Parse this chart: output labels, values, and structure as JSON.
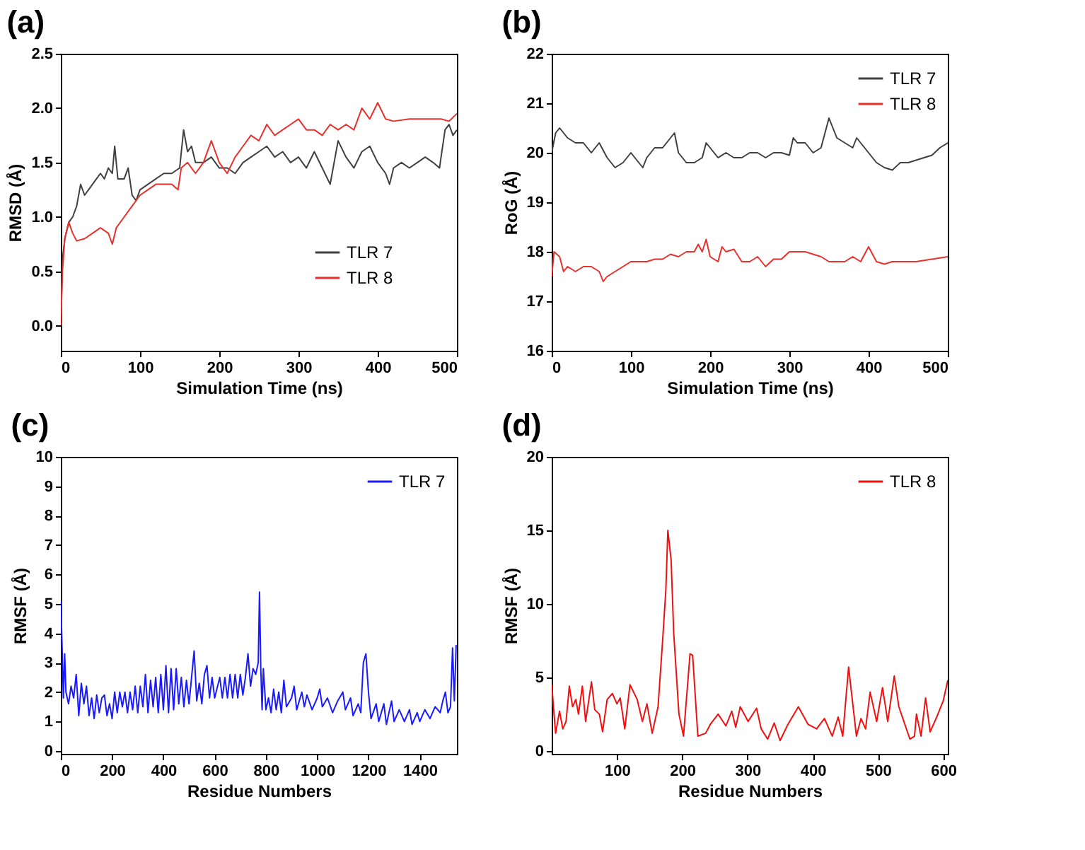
{
  "chart_data": [
    {
      "type": "line",
      "title": "(a)",
      "xlabel": "Simulation Time (ns)",
      "ylabel": "RMSD (Å)",
      "xlim": [
        0,
        500
      ],
      "ylim": [
        -0.23,
        2.5
      ],
      "xticks": [
        0,
        100,
        200,
        300,
        400,
        500
      ],
      "yticks": [
        {
          "value": 0,
          "label": "0.0"
        },
        {
          "value": 0.5,
          "label": "0.5"
        },
        {
          "value": 1,
          "label": "1.0"
        },
        {
          "value": 1.5,
          "label": "1.5"
        },
        {
          "value": 2,
          "label": "2.0"
        },
        {
          "value": 2.5,
          "label": "2.5"
        }
      ],
      "legend": "bottom right",
      "series": [
        {
          "name": "TLR 7",
          "color": "#404040",
          "x": [
            0,
            2,
            5,
            10,
            15,
            20,
            25,
            30,
            35,
            40,
            45,
            50,
            55,
            60,
            65,
            68,
            72,
            80,
            85,
            90,
            95,
            100,
            110,
            120,
            130,
            140,
            150,
            155,
            160,
            165,
            170,
            180,
            190,
            200,
            210,
            220,
            230,
            240,
            250,
            260,
            270,
            280,
            290,
            300,
            310,
            320,
            330,
            340,
            350,
            360,
            370,
            380,
            390,
            400,
            410,
            415,
            420,
            430,
            440,
            450,
            460,
            470,
            478,
            485,
            490,
            495,
            500
          ],
          "values": [
            0.0,
            0.6,
            0.8,
            0.95,
            1.0,
            1.1,
            1.3,
            1.2,
            1.25,
            1.3,
            1.35,
            1.4,
            1.35,
            1.45,
            1.4,
            1.65,
            1.35,
            1.35,
            1.45,
            1.2,
            1.15,
            1.25,
            1.3,
            1.35,
            1.4,
            1.4,
            1.45,
            1.8,
            1.6,
            1.65,
            1.5,
            1.5,
            1.55,
            1.45,
            1.45,
            1.4,
            1.5,
            1.55,
            1.6,
            1.65,
            1.55,
            1.6,
            1.5,
            1.55,
            1.45,
            1.6,
            1.45,
            1.3,
            1.7,
            1.55,
            1.45,
            1.6,
            1.65,
            1.5,
            1.4,
            1.3,
            1.45,
            1.5,
            1.45,
            1.5,
            1.55,
            1.5,
            1.45,
            1.8,
            1.85,
            1.75,
            1.8
          ]
        },
        {
          "name": "TLR 8",
          "color": "#e8302c",
          "x": [
            0,
            2,
            5,
            10,
            15,
            20,
            30,
            40,
            50,
            60,
            65,
            70,
            80,
            90,
            100,
            110,
            120,
            130,
            140,
            148,
            152,
            160,
            170,
            180,
            190,
            200,
            210,
            220,
            230,
            240,
            250,
            260,
            270,
            280,
            290,
            300,
            310,
            320,
            330,
            340,
            350,
            360,
            370,
            380,
            390,
            400,
            410,
            420,
            440,
            460,
            480,
            490,
            500
          ],
          "values": [
            0.0,
            0.5,
            0.8,
            0.95,
            0.85,
            0.78,
            0.8,
            0.85,
            0.9,
            0.85,
            0.75,
            0.9,
            1.0,
            1.1,
            1.2,
            1.25,
            1.3,
            1.3,
            1.3,
            1.25,
            1.45,
            1.5,
            1.4,
            1.5,
            1.7,
            1.5,
            1.4,
            1.55,
            1.65,
            1.75,
            1.7,
            1.85,
            1.75,
            1.8,
            1.85,
            1.9,
            1.8,
            1.8,
            1.75,
            1.85,
            1.8,
            1.85,
            1.8,
            2.0,
            1.9,
            2.05,
            1.9,
            1.88,
            1.9,
            1.9,
            1.9,
            1.88,
            1.95
          ]
        }
      ]
    },
    {
      "type": "line",
      "title": "(b)",
      "xlabel": "Simulation Time (ns)",
      "ylabel": "RoG (Å)",
      "xlim": [
        0,
        500
      ],
      "ylim": [
        16,
        22
      ],
      "xticks": [
        0,
        100,
        200,
        300,
        400,
        500
      ],
      "yticks": [
        16,
        17,
        18,
        19,
        20,
        21,
        22
      ],
      "legend": "top right",
      "series": [
        {
          "name": "TLR 7",
          "color": "#404040",
          "x": [
            0,
            5,
            10,
            20,
            30,
            40,
            50,
            60,
            70,
            80,
            90,
            100,
            110,
            115,
            120,
            130,
            140,
            150,
            155,
            160,
            170,
            180,
            190,
            195,
            200,
            210,
            220,
            230,
            240,
            250,
            260,
            270,
            280,
            290,
            300,
            305,
            310,
            320,
            330,
            340,
            345,
            350,
            360,
            370,
            380,
            385,
            390,
            400,
            410,
            420,
            430,
            440,
            450,
            460,
            470,
            480,
            490,
            500
          ],
          "values": [
            20.0,
            20.4,
            20.5,
            20.3,
            20.2,
            20.2,
            20.0,
            20.2,
            19.9,
            19.7,
            19.8,
            20.0,
            19.8,
            19.7,
            19.9,
            20.1,
            20.1,
            20.3,
            20.4,
            20.0,
            19.8,
            19.8,
            19.9,
            20.2,
            20.1,
            19.9,
            20.0,
            19.9,
            19.9,
            20.0,
            20.0,
            19.9,
            20.0,
            20.0,
            19.95,
            20.3,
            20.2,
            20.2,
            20.0,
            20.1,
            20.4,
            20.7,
            20.3,
            20.2,
            20.1,
            20.3,
            20.2,
            20.0,
            19.8,
            19.7,
            19.65,
            19.8,
            19.8,
            19.85,
            19.9,
            19.95,
            20.1,
            20.2
          ]
        },
        {
          "name": "TLR 8",
          "color": "#e8302c",
          "x": [
            0,
            3,
            10,
            15,
            20,
            30,
            40,
            50,
            60,
            65,
            70,
            80,
            90,
            100,
            110,
            120,
            130,
            140,
            150,
            160,
            170,
            180,
            185,
            190,
            195,
            200,
            210,
            215,
            220,
            230,
            240,
            250,
            260,
            270,
            280,
            290,
            300,
            310,
            320,
            330,
            340,
            350,
            360,
            370,
            380,
            390,
            400,
            410,
            420,
            430,
            440,
            460,
            480,
            500
          ],
          "values": [
            17.5,
            18.0,
            17.9,
            17.6,
            17.7,
            17.6,
            17.7,
            17.7,
            17.6,
            17.4,
            17.5,
            17.6,
            17.7,
            17.8,
            17.8,
            17.8,
            17.85,
            17.85,
            17.95,
            17.9,
            18.0,
            18.0,
            18.15,
            18.0,
            18.25,
            17.9,
            17.8,
            18.1,
            18.0,
            18.05,
            17.8,
            17.8,
            17.9,
            17.7,
            17.85,
            17.85,
            18.0,
            18.0,
            18.0,
            17.95,
            17.9,
            17.8,
            17.8,
            17.8,
            17.9,
            17.8,
            18.1,
            17.8,
            17.75,
            17.8,
            17.8,
            17.8,
            17.85,
            17.9
          ]
        }
      ]
    },
    {
      "type": "line",
      "title": "(c)",
      "xlabel": "Residue Numbers",
      "ylabel": "RMSF (Å)",
      "xlim": [
        0,
        1545
      ],
      "ylim": [
        -0.1,
        10
      ],
      "xticks": [
        0,
        200,
        400,
        600,
        800,
        1000,
        1200,
        1400
      ],
      "yticks": [
        0,
        1,
        2,
        3,
        4,
        5,
        6,
        7,
        8,
        9,
        10
      ],
      "legend": "top right",
      "series": [
        {
          "name": "TLR 7",
          "color": "#1a1aff",
          "x": [
            0,
            5,
            10,
            15,
            20,
            30,
            40,
            50,
            60,
            70,
            80,
            90,
            100,
            110,
            120,
            130,
            140,
            150,
            160,
            170,
            180,
            190,
            200,
            210,
            220,
            230,
            240,
            250,
            260,
            270,
            280,
            290,
            300,
            310,
            320,
            330,
            340,
            350,
            360,
            370,
            380,
            390,
            400,
            410,
            420,
            430,
            440,
            450,
            460,
            470,
            480,
            490,
            500,
            510,
            520,
            530,
            540,
            550,
            560,
            570,
            580,
            590,
            600,
            620,
            630,
            640,
            650,
            660,
            670,
            680,
            690,
            700,
            710,
            720,
            730,
            740,
            750,
            760,
            770,
            775,
            780,
            785,
            790,
            800,
            810,
            820,
            830,
            840,
            850,
            860,
            870,
            880,
            900,
            910,
            920,
            940,
            950,
            960,
            980,
            1000,
            1010,
            1020,
            1040,
            1060,
            1080,
            1100,
            1110,
            1130,
            1140,
            1160,
            1170,
            1180,
            1190,
            1200,
            1210,
            1230,
            1240,
            1260,
            1270,
            1290,
            1300,
            1320,
            1340,
            1360,
            1370,
            1390,
            1400,
            1420,
            1440,
            1460,
            1480,
            1490,
            1500,
            1510,
            1520,
            1528,
            1535,
            1542
          ],
          "values": [
            5.1,
            3.5,
            1.8,
            3.3,
            2.0,
            1.6,
            2.2,
            1.8,
            2.6,
            1.2,
            2.3,
            1.6,
            2.2,
            1.2,
            1.8,
            1.1,
            1.9,
            1.3,
            1.8,
            1.9,
            1.2,
            1.6,
            1.1,
            2.0,
            1.3,
            2.0,
            1.5,
            2.0,
            1.3,
            2.0,
            1.4,
            2.2,
            1.3,
            2.2,
            1.5,
            2.6,
            1.3,
            2.4,
            1.5,
            2.5,
            1.3,
            2.6,
            1.4,
            2.9,
            1.3,
            2.8,
            1.4,
            2.8,
            1.6,
            2.5,
            1.5,
            2.4,
            1.6,
            2.5,
            3.4,
            1.7,
            2.3,
            1.6,
            2.6,
            2.9,
            1.8,
            2.5,
            1.8,
            2.5,
            1.8,
            2.5,
            1.8,
            2.6,
            1.8,
            2.6,
            1.8,
            2.6,
            1.9,
            2.5,
            3.3,
            2.2,
            2.8,
            2.6,
            3.0,
            5.4,
            2.8,
            1.4,
            2.8,
            1.4,
            1.8,
            1.3,
            2.1,
            1.4,
            2.0,
            1.3,
            2.4,
            1.5,
            1.8,
            2.2,
            1.4,
            2.0,
            1.5,
            1.9,
            1.4,
            1.8,
            2.1,
            1.5,
            1.8,
            1.3,
            1.7,
            2.0,
            1.4,
            1.8,
            1.2,
            1.6,
            1.3,
            3.0,
            3.3,
            2.0,
            1.1,
            1.6,
            1.0,
            1.6,
            0.9,
            1.7,
            1.0,
            1.4,
            1.0,
            1.4,
            0.9,
            1.3,
            1.0,
            1.4,
            1.1,
            1.5,
            1.3,
            1.7,
            2.0,
            1.3,
            1.5,
            3.5,
            1.7,
            3.6
          ]
        }
      ]
    },
    {
      "type": "line",
      "title": "(d)",
      "xlabel": "Residue Numbers",
      "ylabel": "RMSF (Å)",
      "xlim": [
        0,
        607
      ],
      "ylim": [
        -0.2,
        20
      ],
      "xticks": [
        100,
        200,
        300,
        400,
        500,
        600
      ],
      "yticks": [
        0,
        5,
        10,
        15,
        20
      ],
      "legend": "top right",
      "series": [
        {
          "name": "TLR 8",
          "color": "#f01010",
          "x": [
            0,
            6,
            12,
            17,
            22,
            27,
            32,
            37,
            41,
            47,
            52,
            61,
            66,
            73,
            78,
            85,
            93,
            100,
            105,
            112,
            120,
            131,
            139,
            146,
            154,
            163,
            170,
            175,
            178,
            183,
            187,
            195,
            202,
            212,
            216,
            224,
            236,
            243,
            255,
            267,
            276,
            282,
            289,
            301,
            314,
            321,
            331,
            341,
            350,
            362,
            378,
            393,
            406,
            418,
            430,
            439,
            446,
            455,
            467,
            474,
            481,
            488,
            498,
            507,
            515,
            525,
            532,
            549,
            556,
            559,
            566,
            573,
            580,
            590,
            600,
            607
          ],
          "values": [
            4.5,
            1.2,
            2.7,
            1.5,
            2.0,
            4.4,
            3.0,
            3.5,
            2.5,
            4.4,
            2.0,
            4.7,
            2.8,
            2.5,
            1.3,
            3.5,
            3.9,
            3.2,
            3.6,
            1.5,
            4.5,
            3.5,
            2.0,
            3.2,
            1.2,
            3.0,
            7.5,
            11,
            15,
            13,
            8,
            2.5,
            1.0,
            6.6,
            6.5,
            1.0,
            1.2,
            1.8,
            2.5,
            1.7,
            2.7,
            1.6,
            3.0,
            2.0,
            2.9,
            1.5,
            0.8,
            1.9,
            0.7,
            1.8,
            3.0,
            1.8,
            1.5,
            2.2,
            1.0,
            2.3,
            1.0,
            5.7,
            1.0,
            2.2,
            1.5,
            4.0,
            2.0,
            4.3,
            2.0,
            5.1,
            3.0,
            0.8,
            1.0,
            2.5,
            1.0,
            3.6,
            1.3,
            2.3,
            3.4,
            4.8
          ]
        }
      ]
    }
  ]
}
